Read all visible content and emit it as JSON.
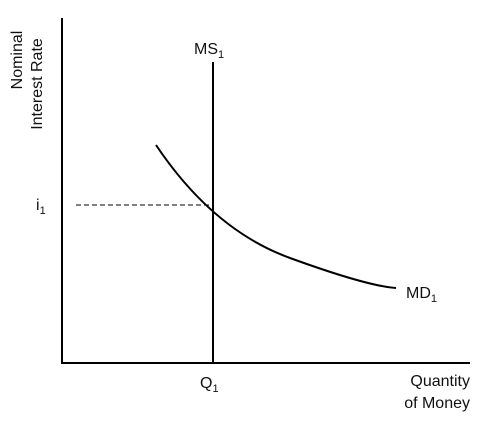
{
  "diagram": {
    "y_axis_label_line1": "Nominal",
    "y_axis_label_line2": "Interest Rate",
    "x_axis_label_line1": "Quantity",
    "x_axis_label_line2": "of Money",
    "money_supply": {
      "label": "MS",
      "subscript": "1"
    },
    "money_demand": {
      "label": "MD",
      "subscript": "1"
    },
    "equilibrium_rate": {
      "label": "i",
      "subscript": "1"
    },
    "equilibrium_quantity": {
      "label": "Q",
      "subscript": "1"
    },
    "colors": {
      "line": "#000000",
      "text": "#111111"
    }
  }
}
